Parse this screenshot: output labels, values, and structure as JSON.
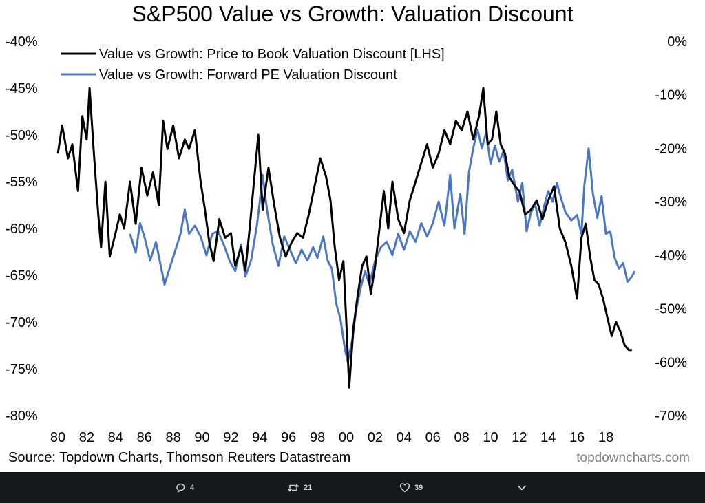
{
  "chart_data": {
    "type": "line",
    "title": "S&P500 Value vs Growth: Valuation Discount",
    "source": "Source: Topdown Charts, Thomson Reuters Datastream",
    "watermark": "topdowncharts.com",
    "x_ticks": [
      "80",
      "82",
      "84",
      "86",
      "88",
      "90",
      "92",
      "94",
      "96",
      "98",
      "00",
      "02",
      "04",
      "06",
      "08",
      "10",
      "12",
      "14",
      "16",
      "18"
    ],
    "y_left": {
      "min": -80,
      "max": -40,
      "ticks": [
        "-40%",
        "-45%",
        "-50%",
        "-55%",
        "-60%",
        "-65%",
        "-70%",
        "-75%",
        "-80%"
      ]
    },
    "y_right": {
      "min": -70,
      "max": 0,
      "ticks": [
        "0%",
        "-10%",
        "-20%",
        "-30%",
        "-40%",
        "-50%",
        "-60%",
        "-70%"
      ]
    },
    "legend_position": "top-left",
    "series": [
      {
        "name": "Value vs Growth: Price to Book Valuation Discount [LHS]",
        "axis": "left",
        "color": "#000000",
        "points": [
          [
            1980.0,
            -52.0
          ],
          [
            1980.3,
            -49.0
          ],
          [
            1980.7,
            -52.5
          ],
          [
            1981.0,
            -51.0
          ],
          [
            1981.4,
            -56.0
          ],
          [
            1981.7,
            -48.0
          ],
          [
            1982.0,
            -50.5
          ],
          [
            1982.2,
            -45.0
          ],
          [
            1982.5,
            -52.0
          ],
          [
            1982.8,
            -58.5
          ],
          [
            1983.0,
            -62.0
          ],
          [
            1983.3,
            -55.0
          ],
          [
            1983.6,
            -63.0
          ],
          [
            1984.0,
            -60.5
          ],
          [
            1984.3,
            -58.5
          ],
          [
            1984.6,
            -60.0
          ],
          [
            1985.0,
            -55.0
          ],
          [
            1985.4,
            -59.5
          ],
          [
            1985.8,
            -53.5
          ],
          [
            1986.2,
            -56.5
          ],
          [
            1986.6,
            -54.0
          ],
          [
            1987.0,
            -57.5
          ],
          [
            1987.3,
            -48.5
          ],
          [
            1987.6,
            -51.5
          ],
          [
            1988.0,
            -49.0
          ],
          [
            1988.4,
            -52.5
          ],
          [
            1988.8,
            -50.5
          ],
          [
            1989.1,
            -51.5
          ],
          [
            1989.5,
            -49.5
          ],
          [
            1989.9,
            -55.0
          ],
          [
            1990.2,
            -58.0
          ],
          [
            1990.5,
            -61.5
          ],
          [
            1990.8,
            -63.5
          ],
          [
            1991.2,
            -59.0
          ],
          [
            1991.6,
            -61.0
          ],
          [
            1992.0,
            -60.5
          ],
          [
            1992.3,
            -64.0
          ],
          [
            1992.7,
            -62.0
          ],
          [
            1993.0,
            -64.5
          ],
          [
            1993.3,
            -60.0
          ],
          [
            1993.6,
            -55.0
          ],
          [
            1993.9,
            -50.0
          ],
          [
            1994.2,
            -58.0
          ],
          [
            1994.6,
            -53.5
          ],
          [
            1995.0,
            -57.5
          ],
          [
            1995.4,
            -61.0
          ],
          [
            1995.8,
            -63.0
          ],
          [
            1996.2,
            -61.5
          ],
          [
            1996.6,
            -60.5
          ],
          [
            1997.0,
            -61.0
          ],
          [
            1997.4,
            -58.5
          ],
          [
            1997.8,
            -55.5
          ],
          [
            1998.2,
            -52.5
          ],
          [
            1998.6,
            -54.5
          ],
          [
            1998.9,
            -57.0
          ],
          [
            1999.2,
            -62.0
          ],
          [
            1999.5,
            -65.5
          ],
          [
            1999.8,
            -63.5
          ],
          [
            2000.0,
            -70.0
          ],
          [
            2000.2,
            -77.0
          ],
          [
            2000.5,
            -70.5
          ],
          [
            2000.8,
            -67.0
          ],
          [
            2001.1,
            -64.0
          ],
          [
            2001.4,
            -63.0
          ],
          [
            2001.7,
            -67.0
          ],
          [
            2002.0,
            -64.0
          ],
          [
            2002.3,
            -60.0
          ],
          [
            2002.6,
            -56.0
          ],
          [
            2002.9,
            -60.0
          ],
          [
            2003.2,
            -55.0
          ],
          [
            2003.6,
            -59.0
          ],
          [
            2004.0,
            -60.5
          ],
          [
            2004.4,
            -57.0
          ],
          [
            2004.8,
            -55.0
          ],
          [
            2005.2,
            -53.0
          ],
          [
            2005.6,
            -51.0
          ],
          [
            2006.0,
            -53.5
          ],
          [
            2006.4,
            -52.0
          ],
          [
            2006.8,
            -49.5
          ],
          [
            2007.2,
            -51.0
          ],
          [
            2007.6,
            -48.5
          ],
          [
            2008.0,
            -49.5
          ],
          [
            2008.4,
            -47.5
          ],
          [
            2008.8,
            -50.5
          ],
          [
            2009.2,
            -48.0
          ],
          [
            2009.5,
            -45.0
          ],
          [
            2009.8,
            -51.0
          ],
          [
            2010.1,
            -50.5
          ],
          [
            2010.4,
            -47.5
          ],
          [
            2010.7,
            -51.0
          ],
          [
            2011.0,
            -52.0
          ],
          [
            2011.3,
            -54.5
          ],
          [
            2011.7,
            -55.5
          ],
          [
            2012.0,
            -56.0
          ],
          [
            2012.4,
            -58.5
          ],
          [
            2012.8,
            -58.0
          ],
          [
            2013.2,
            -57.0
          ],
          [
            2013.6,
            -59.0
          ],
          [
            2014.0,
            -57.0
          ],
          [
            2014.4,
            -55.5
          ],
          [
            2014.8,
            -60.0
          ],
          [
            2015.2,
            -61.5
          ],
          [
            2015.6,
            -64.0
          ],
          [
            2016.0,
            -67.5
          ],
          [
            2016.3,
            -61.0
          ],
          [
            2016.6,
            -59.5
          ],
          [
            2016.9,
            -63.0
          ],
          [
            2017.2,
            -65.5
          ],
          [
            2017.5,
            -66.0
          ],
          [
            2017.8,
            -67.5
          ],
          [
            2018.1,
            -69.5
          ],
          [
            2018.4,
            -71.5
          ],
          [
            2018.7,
            -70.0
          ],
          [
            2019.0,
            -71.0
          ],
          [
            2019.3,
            -72.5
          ],
          [
            2019.6,
            -73.0
          ],
          [
            2019.8,
            -73.0
          ]
        ]
      },
      {
        "name": "Value vs Growth: Forward PE Valuation Discount",
        "axis": "right",
        "color": "#4a78c4",
        "points": [
          [
            1985.0,
            -36.0
          ],
          [
            1985.4,
            -39.5
          ],
          [
            1985.7,
            -34.0
          ],
          [
            1986.0,
            -36.5
          ],
          [
            1986.4,
            -41.0
          ],
          [
            1986.8,
            -37.5
          ],
          [
            1987.1,
            -41.5
          ],
          [
            1987.4,
            -45.5
          ],
          [
            1987.8,
            -42.0
          ],
          [
            1988.1,
            -39.5
          ],
          [
            1988.5,
            -36.0
          ],
          [
            1988.8,
            -31.5
          ],
          [
            1989.1,
            -36.0
          ],
          [
            1989.5,
            -34.5
          ],
          [
            1989.9,
            -36.5
          ],
          [
            1990.3,
            -40.0
          ],
          [
            1990.7,
            -36.0
          ],
          [
            1991.1,
            -35.5
          ],
          [
            1991.5,
            -38.0
          ],
          [
            1991.9,
            -41.0
          ],
          [
            1992.3,
            -43.0
          ],
          [
            1992.7,
            -38.0
          ],
          [
            1993.0,
            -44.0
          ],
          [
            1993.4,
            -41.0
          ],
          [
            1993.8,
            -34.5
          ],
          [
            1994.0,
            -30.0
          ],
          [
            1994.2,
            -25.0
          ],
          [
            1994.5,
            -31.5
          ],
          [
            1994.9,
            -38.0
          ],
          [
            1995.3,
            -42.0
          ],
          [
            1995.7,
            -36.5
          ],
          [
            1996.1,
            -39.0
          ],
          [
            1996.5,
            -41.5
          ],
          [
            1996.9,
            -39.0
          ],
          [
            1997.3,
            -41.0
          ],
          [
            1997.7,
            -38.5
          ],
          [
            1998.0,
            -40.5
          ],
          [
            1998.4,
            -36.5
          ],
          [
            1998.7,
            -41.0
          ],
          [
            1999.0,
            -42.5
          ],
          [
            1999.3,
            -49.0
          ],
          [
            1999.6,
            -52.0
          ],
          [
            1999.9,
            -57.5
          ],
          [
            2000.1,
            -60.0
          ],
          [
            2000.4,
            -56.0
          ],
          [
            2000.7,
            -50.0
          ],
          [
            2001.0,
            -46.0
          ],
          [
            2001.3,
            -43.0
          ],
          [
            2001.6,
            -45.5
          ],
          [
            2002.0,
            -41.0
          ],
          [
            2002.4,
            -38.5
          ],
          [
            2002.8,
            -37.5
          ],
          [
            2003.2,
            -40.0
          ],
          [
            2003.6,
            -36.0
          ],
          [
            2004.0,
            -39.0
          ],
          [
            2004.4,
            -35.5
          ],
          [
            2004.8,
            -37.5
          ],
          [
            2005.2,
            -34.0
          ],
          [
            2005.6,
            -36.5
          ],
          [
            2006.0,
            -34.0
          ],
          [
            2006.4,
            -30.0
          ],
          [
            2006.8,
            -34.5
          ],
          [
            2007.2,
            -25.0
          ],
          [
            2007.5,
            -35.0
          ],
          [
            2007.9,
            -28.5
          ],
          [
            2008.2,
            -36.0
          ],
          [
            2008.5,
            -24.5
          ],
          [
            2008.8,
            -20.0
          ],
          [
            2009.1,
            -16.5
          ],
          [
            2009.4,
            -20.0
          ],
          [
            2009.7,
            -17.0
          ],
          [
            2010.0,
            -23.0
          ],
          [
            2010.3,
            -19.5
          ],
          [
            2010.6,
            -22.5
          ],
          [
            2010.9,
            -20.5
          ],
          [
            2011.2,
            -26.0
          ],
          [
            2011.5,
            -24.0
          ],
          [
            2011.9,
            -30.0
          ],
          [
            2012.2,
            -26.5
          ],
          [
            2012.5,
            -35.5
          ],
          [
            2012.8,
            -32.0
          ],
          [
            2013.1,
            -30.5
          ],
          [
            2013.4,
            -34.5
          ],
          [
            2013.7,
            -31.0
          ],
          [
            2014.0,
            -28.0
          ],
          [
            2014.3,
            -30.0
          ],
          [
            2014.6,
            -26.5
          ],
          [
            2014.9,
            -29.5
          ],
          [
            2015.2,
            -32.0
          ],
          [
            2015.6,
            -33.5
          ],
          [
            2016.0,
            -32.5
          ],
          [
            2016.3,
            -36.0
          ],
          [
            2016.5,
            -27.0
          ],
          [
            2016.8,
            -20.0
          ],
          [
            2017.1,
            -28.5
          ],
          [
            2017.4,
            -33.0
          ],
          [
            2017.7,
            -29.0
          ],
          [
            2018.0,
            -36.0
          ],
          [
            2018.3,
            -35.5
          ],
          [
            2018.6,
            -40.5
          ],
          [
            2018.9,
            -42.5
          ],
          [
            2019.2,
            -41.5
          ],
          [
            2019.5,
            -45.0
          ],
          [
            2019.8,
            -44.0
          ],
          [
            2020.0,
            -43.0
          ]
        ]
      }
    ]
  },
  "actions": {
    "replies": "4",
    "retweets": "21",
    "likes": "39"
  }
}
